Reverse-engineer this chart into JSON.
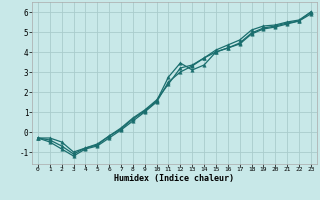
{
  "xlabel": "Humidex (Indice chaleur)",
  "background_color": "#c8e8e8",
  "grid_color": "#aacccc",
  "line_color": "#1a6e6e",
  "xlim": [
    -0.5,
    23.5
  ],
  "ylim": [
    -1.6,
    6.5
  ],
  "xticks": [
    0,
    1,
    2,
    3,
    4,
    5,
    6,
    7,
    8,
    9,
    10,
    11,
    12,
    13,
    14,
    15,
    16,
    17,
    18,
    19,
    20,
    21,
    22,
    23
  ],
  "yticks": [
    -1,
    0,
    1,
    2,
    3,
    4,
    5,
    6
  ],
  "line1_x": [
    0,
    1,
    2,
    3,
    4,
    5,
    6,
    7,
    8,
    9,
    10,
    11,
    12,
    13,
    14,
    15,
    16,
    17,
    18,
    19,
    20,
    21,
    22,
    23
  ],
  "line1_y": [
    -0.3,
    -0.5,
    -0.85,
    -1.2,
    -0.85,
    -0.7,
    -0.3,
    0.1,
    0.55,
    1.0,
    1.5,
    2.5,
    3.0,
    3.3,
    3.7,
    4.0,
    4.2,
    4.45,
    4.95,
    5.2,
    5.3,
    5.45,
    5.55,
    6.0
  ],
  "line2_x": [
    0,
    1,
    2,
    3,
    4,
    5,
    6,
    7,
    8,
    9,
    10,
    11,
    12,
    13,
    14,
    15,
    16,
    17,
    18,
    19,
    20,
    21,
    22,
    23
  ],
  "line2_y": [
    -0.3,
    -0.4,
    -0.7,
    -1.1,
    -0.8,
    -0.65,
    -0.2,
    0.15,
    0.65,
    1.05,
    1.55,
    2.75,
    3.45,
    3.1,
    3.35,
    4.0,
    4.2,
    4.4,
    4.9,
    5.15,
    5.25,
    5.4,
    5.55,
    5.9
  ],
  "line3_x": [
    0,
    1,
    2,
    3,
    4,
    5,
    6,
    7,
    8,
    9,
    10,
    11,
    12,
    13,
    14,
    15,
    16,
    17,
    18,
    19,
    20,
    21,
    22,
    23
  ],
  "line3_y": [
    -0.3,
    -0.3,
    -0.5,
    -1.0,
    -0.8,
    -0.6,
    -0.2,
    0.2,
    0.7,
    1.1,
    1.6,
    2.4,
    3.2,
    3.35,
    3.7,
    4.1,
    4.35,
    4.6,
    5.1,
    5.3,
    5.35,
    5.5,
    5.6,
    6.0
  ]
}
